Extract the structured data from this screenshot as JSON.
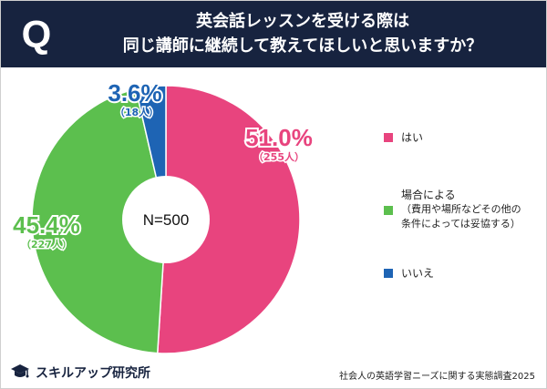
{
  "header": {
    "badge": "Q",
    "title_line1": "英会話レッスンを受ける際は",
    "title_line2": "同じ講師に継続して教えてほしいと思いますか？"
  },
  "chart_data": {
    "type": "pie",
    "variant": "donut",
    "center_label": "N=500",
    "total": 500,
    "categories": [
      "はい",
      "場合による（費用や場所などその他の条件によっては妥協する）",
      "いいえ"
    ],
    "series": [
      {
        "name": "はい",
        "percent": 51.0,
        "percent_label": "51.0%",
        "count_label": "（255人）",
        "color": "#e8447e"
      },
      {
        "name": "場合による",
        "percent": 45.4,
        "percent_label": "45.4%",
        "count_label": "（227人）",
        "color": "#5cbf4e"
      },
      {
        "name": "いいえ",
        "percent": 3.6,
        "percent_label": "3.6%",
        "count_label": "（18人）",
        "color": "#1e64b4"
      }
    ],
    "legend": [
      {
        "label": "はい",
        "color": "#e8447e"
      },
      {
        "label": "場合による",
        "sublabel_line1": "（費用や場所などその他の",
        "sublabel_line2": "条件によっては妥協する）",
        "color": "#5cbf4e"
      },
      {
        "label": "いいえ",
        "color": "#1e64b4"
      }
    ]
  },
  "footer": {
    "brand": "スキルアップ研究所",
    "source": "社会人の英語学習ニーズに関する実態調査2025"
  }
}
